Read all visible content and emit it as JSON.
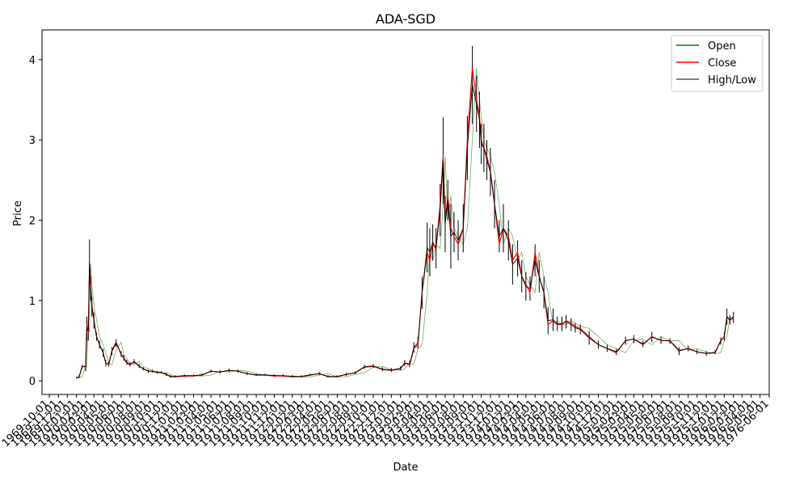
{
  "chart_data": {
    "type": "line",
    "title": "ADA-SGD",
    "xlabel": "Date",
    "ylabel": "Price",
    "x_ticks": [
      "1969-10-01",
      "1969-11-01",
      "1969-12-01",
      "1970-01-01",
      "1970-02-01",
      "1970-03-01",
      "1970-04-01",
      "1970-05-01",
      "1970-06-01",
      "1970-07-01",
      "1970-08-01",
      "1970-09-01",
      "1970-10-01",
      "1970-11-01",
      "1970-12-01",
      "1971-01-01",
      "1971-02-01",
      "1971-03-01",
      "1971-04-01",
      "1971-05-01",
      "1971-06-01",
      "1971-07-01",
      "1971-08-01",
      "1971-09-01",
      "1971-10-01",
      "1971-11-01",
      "1971-12-01",
      "1972-01-01",
      "1972-02-01",
      "1972-03-01",
      "1972-04-01",
      "1972-05-01",
      "1972-06-01",
      "1972-07-01",
      "1972-08-01",
      "1972-09-01",
      "1972-10-01",
      "1972-11-01",
      "1972-12-01",
      "1973-01-01",
      "1973-02-01",
      "1973-03-01",
      "1973-04-01",
      "1973-05-01",
      "1973-06-01",
      "1973-07-01",
      "1973-08-01",
      "1973-09-01",
      "1973-10-01",
      "1973-11-01",
      "1973-12-01",
      "1974-01-01",
      "1974-02-01",
      "1974-03-01",
      "1974-04-01",
      "1974-05-01",
      "1974-06-01",
      "1974-07-01",
      "1974-08-01",
      "1974-09-01",
      "1974-10-01",
      "1974-11-01",
      "1974-12-01",
      "1975-01-01",
      "1975-02-01",
      "1975-03-01",
      "1975-04-01",
      "1975-05-01",
      "1975-06-01",
      "1975-07-01",
      "1975-08-01",
      "1975-09-01",
      "1975-10-01",
      "1975-11-01",
      "1975-12-01",
      "1976-01-01",
      "1976-02-01",
      "1976-03-01",
      "1976-04-01",
      "1976-05-01",
      "1976-06-01"
    ],
    "ylim": [
      -0.17,
      4.37
    ],
    "y_ticks": [
      0,
      1,
      2,
      3,
      4
    ],
    "grid": false,
    "legend_position": "top-right",
    "series": [
      {
        "name": "Open",
        "color": "#008000"
      },
      {
        "name": "Close",
        "color": "#ff0000"
      },
      {
        "name": "High/Low",
        "color": "#000000"
      }
    ],
    "x": [
      "1970-01-01",
      "1970-01-10",
      "1970-01-20",
      "1970-02-01",
      "1970-02-05",
      "1970-02-10",
      "1970-02-14",
      "1970-02-18",
      "1970-02-22",
      "1970-03-01",
      "1970-03-10",
      "1970-03-20",
      "1970-04-01",
      "1970-04-10",
      "1970-04-20",
      "1970-05-01",
      "1970-05-15",
      "1970-06-01",
      "1970-06-10",
      "1970-06-20",
      "1970-07-01",
      "1970-07-15",
      "1970-08-01",
      "1970-08-15",
      "1970-09-01",
      "1970-09-15",
      "1970-10-01",
      "1970-10-15",
      "1970-11-01",
      "1970-11-15",
      "1970-12-01",
      "1971-01-01",
      "1971-02-01",
      "1971-03-01",
      "1971-04-01",
      "1971-05-01",
      "1971-06-01",
      "1971-07-01",
      "1971-08-01",
      "1971-09-01",
      "1971-10-01",
      "1971-11-01",
      "1971-12-01",
      "1972-01-01",
      "1972-02-01",
      "1972-03-01",
      "1972-04-01",
      "1972-05-01",
      "1972-06-01",
      "1972-07-01",
      "1972-08-01",
      "1972-09-01",
      "1972-10-01",
      "1972-11-01",
      "1972-12-01",
      "1973-01-01",
      "1973-01-15",
      "1973-02-01",
      "1973-02-15",
      "1973-03-01",
      "1973-03-15",
      "1973-04-01",
      "1973-04-10",
      "1973-04-20",
      "1973-05-01",
      "1973-05-15",
      "1973-05-25",
      "1973-06-01",
      "1973-06-10",
      "1973-06-20",
      "1973-07-01",
      "1973-07-15",
      "1973-08-01",
      "1973-08-15",
      "1973-09-01",
      "1973-09-15",
      "1973-09-25",
      "1973-10-01",
      "1973-10-10",
      "1973-10-20",
      "1973-11-01",
      "1973-11-15",
      "1973-12-01",
      "1973-12-15",
      "1974-01-01",
      "1974-01-15",
      "1974-02-01",
      "1974-02-15",
      "1974-03-01",
      "1974-03-15",
      "1974-04-01",
      "1974-04-15",
      "1974-05-01",
      "1974-05-15",
      "1974-06-01",
      "1974-06-15",
      "1974-07-01",
      "1974-07-15",
      "1974-08-01",
      "1974-08-15",
      "1974-09-01",
      "1974-10-01",
      "1974-11-01",
      "1974-12-01",
      "1975-01-01",
      "1975-02-01",
      "1975-03-01",
      "1975-04-01",
      "1975-05-01",
      "1975-06-01",
      "1975-07-01",
      "1975-08-01",
      "1975-09-01",
      "1975-10-01",
      "1975-11-01",
      "1975-12-01",
      "1975-12-20",
      "1976-01-01",
      "1976-01-10",
      "1976-01-20",
      "1976-02-01"
    ],
    "close": [
      0.04,
      0.05,
      0.18,
      0.17,
      0.7,
      0.6,
      1.45,
      1.2,
      0.95,
      0.75,
      0.55,
      0.45,
      0.35,
      0.22,
      0.2,
      0.38,
      0.48,
      0.33,
      0.28,
      0.22,
      0.2,
      0.24,
      0.18,
      0.15,
      0.12,
      0.12,
      0.1,
      0.1,
      0.08,
      0.05,
      0.05,
      0.06,
      0.06,
      0.07,
      0.12,
      0.11,
      0.13,
      0.12,
      0.09,
      0.07,
      0.07,
      0.06,
      0.06,
      0.05,
      0.05,
      0.07,
      0.09,
      0.05,
      0.05,
      0.08,
      0.1,
      0.17,
      0.18,
      0.14,
      0.13,
      0.15,
      0.22,
      0.2,
      0.4,
      0.45,
      1.1,
      1.6,
      1.5,
      1.7,
      1.65,
      2.2,
      2.8,
      2.0,
      2.3,
      1.9,
      1.8,
      1.7,
      1.9,
      3.0,
      3.9,
      3.5,
      3.3,
      3.0,
      2.9,
      2.8,
      2.6,
      2.2,
      1.7,
      1.9,
      1.8,
      1.5,
      1.6,
      1.3,
      1.2,
      1.1,
      1.6,
      1.3,
      1.1,
      0.7,
      0.75,
      0.7,
      0.7,
      0.75,
      0.72,
      0.68,
      0.65,
      0.55,
      0.45,
      0.4,
      0.35,
      0.5,
      0.52,
      0.45,
      0.55,
      0.5,
      0.5,
      0.38,
      0.4,
      0.36,
      0.34,
      0.35,
      0.5,
      0.55,
      0.8,
      0.75,
      0.8
    ],
    "high": [
      0.05,
      0.07,
      0.2,
      0.25,
      0.8,
      0.75,
      1.76,
      1.3,
      1.05,
      0.85,
      0.6,
      0.5,
      0.4,
      0.26,
      0.24,
      0.42,
      0.52,
      0.37,
      0.32,
      0.26,
      0.23,
      0.27,
      0.21,
      0.17,
      0.14,
      0.14,
      0.12,
      0.12,
      0.1,
      0.07,
      0.07,
      0.08,
      0.08,
      0.09,
      0.14,
      0.13,
      0.15,
      0.14,
      0.11,
      0.09,
      0.09,
      0.08,
      0.08,
      0.07,
      0.07,
      0.09,
      0.11,
      0.07,
      0.07,
      0.1,
      0.12,
      0.2,
      0.21,
      0.17,
      0.16,
      0.18,
      0.26,
      0.25,
      0.48,
      0.55,
      1.3,
      1.97,
      1.9,
      1.95,
      1.9,
      2.45,
      3.28,
      2.3,
      2.5,
      2.2,
      2.1,
      2.0,
      2.2,
      3.3,
      4.17,
      3.8,
      3.6,
      3.2,
      3.2,
      3.0,
      2.9,
      2.5,
      2.0,
      2.2,
      2.0,
      1.7,
      1.75,
      1.5,
      1.35,
      1.3,
      1.7,
      1.5,
      1.3,
      0.92,
      0.9,
      0.8,
      0.8,
      0.82,
      0.78,
      0.72,
      0.7,
      0.62,
      0.5,
      0.45,
      0.4,
      0.55,
      0.57,
      0.5,
      0.61,
      0.55,
      0.53,
      0.42,
      0.44,
      0.39,
      0.37,
      0.38,
      0.54,
      0.6,
      0.9,
      0.82,
      0.86
    ],
    "low": [
      0.03,
      0.03,
      0.15,
      0.12,
      0.5,
      0.5,
      1.2,
      1.0,
      0.8,
      0.65,
      0.5,
      0.4,
      0.3,
      0.18,
      0.18,
      0.32,
      0.42,
      0.3,
      0.25,
      0.2,
      0.18,
      0.21,
      0.16,
      0.13,
      0.1,
      0.1,
      0.09,
      0.09,
      0.06,
      0.04,
      0.04,
      0.05,
      0.05,
      0.06,
      0.1,
      0.09,
      0.11,
      0.1,
      0.07,
      0.06,
      0.06,
      0.05,
      0.05,
      0.04,
      0.04,
      0.06,
      0.07,
      0.04,
      0.04,
      0.06,
      0.08,
      0.15,
      0.16,
      0.12,
      0.11,
      0.13,
      0.18,
      0.17,
      0.35,
      0.4,
      0.9,
      1.35,
      1.3,
      1.5,
      1.4,
      1.8,
      2.2,
      1.6,
      2.0,
      1.4,
      1.6,
      1.5,
      1.6,
      2.5,
      3.2,
      3.1,
      2.9,
      2.7,
      2.6,
      2.5,
      2.3,
      1.9,
      1.6,
      1.6,
      1.5,
      1.2,
      1.3,
      1.1,
      1.0,
      1.0,
      1.3,
      1.1,
      0.9,
      0.58,
      0.62,
      0.62,
      0.62,
      0.65,
      0.62,
      0.6,
      0.58,
      0.45,
      0.4,
      0.36,
      0.32,
      0.45,
      0.47,
      0.42,
      0.48,
      0.46,
      0.46,
      0.32,
      0.37,
      0.33,
      0.31,
      0.33,
      0.45,
      0.5,
      0.7,
      0.7,
      0.72
    ]
  }
}
